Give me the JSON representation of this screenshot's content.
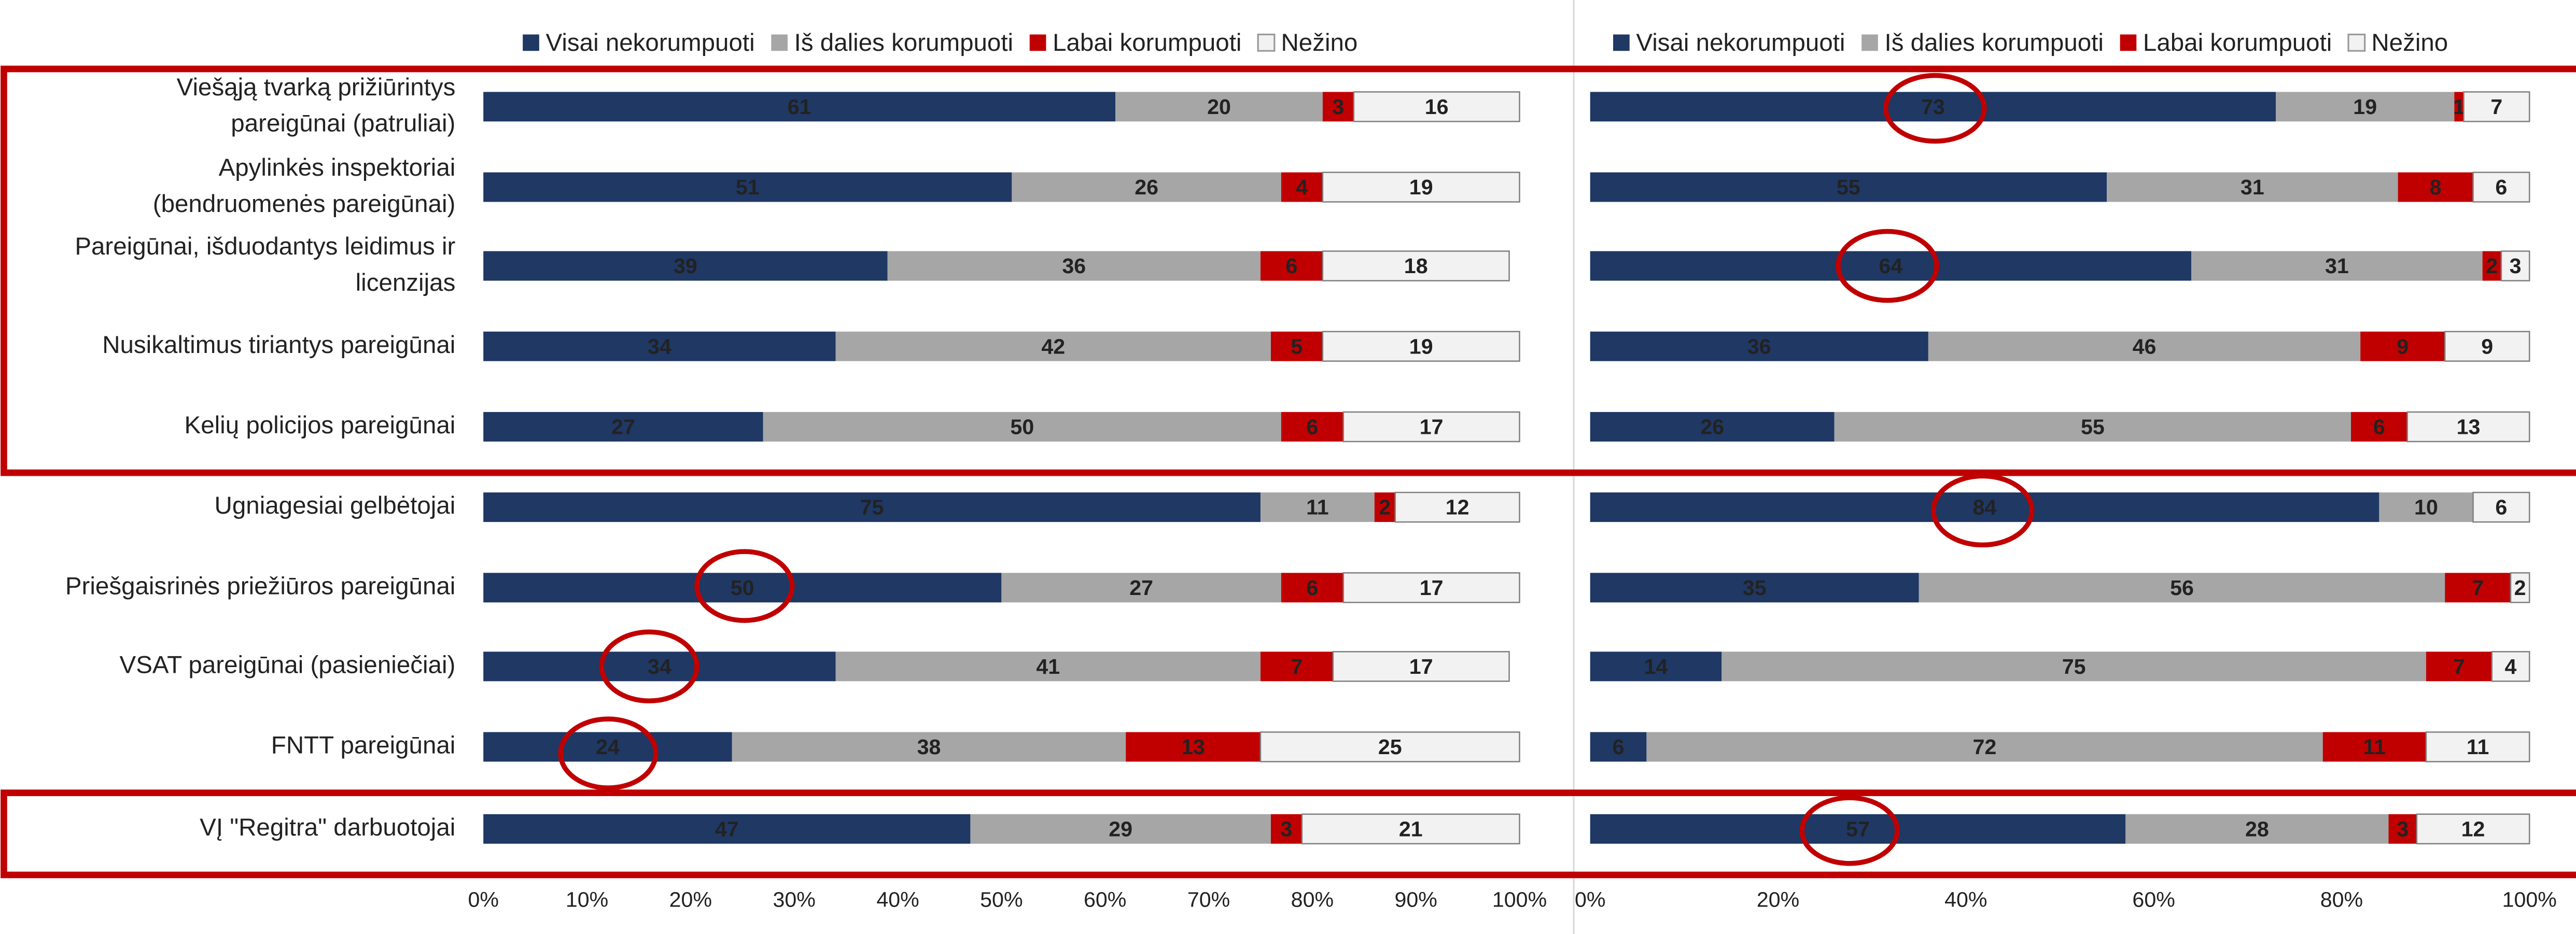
{
  "chart_data": [
    {
      "type": "bar",
      "orientation": "horizontal",
      "stacked": true,
      "categories": [
        "Viešąją tvarką prižiūrintys\npareigūnai (patruliai)",
        "Apylinkės inspektoriai\n(bendruomenės pareigūnai)",
        "Pareigūnai, išduodantys leidimus ir\nlicenzijas",
        "Nusikaltimus tiriantys pareigūnai",
        "Kelių policijos pareigūnai",
        "Ugniagesiai gelbėtojai",
        "Priešgaisrinės priežiūros pareigūnai",
        "VSAT pareigūnai (pasieniečiai)",
        "FNTT pareigūnai",
        "VĮ \"Regitra\" darbuotojai"
      ],
      "series": [
        {
          "name": "Visai nekorumpuoti",
          "color": "#1f3864",
          "values": [
            61,
            51,
            39,
            34,
            27,
            75,
            50,
            34,
            24,
            47
          ]
        },
        {
          "name": "Iš dalies korumpuoti",
          "color": "#a6a6a6",
          "values": [
            20,
            26,
            36,
            42,
            50,
            11,
            27,
            41,
            38,
            29
          ]
        },
        {
          "name": "Labai korumpuoti",
          "color": "#c00000",
          "values": [
            3,
            4,
            6,
            5,
            6,
            2,
            6,
            7,
            13,
            3
          ]
        },
        {
          "name": "Nežino",
          "color": "#f2f2f2",
          "values": [
            16,
            19,
            18,
            19,
            17,
            12,
            17,
            17,
            25,
            21
          ]
        }
      ],
      "xlim": [
        0,
        100
      ],
      "xticks": [
        {
          "value": 0,
          "label": "0%"
        },
        {
          "value": 10,
          "label": "10%"
        },
        {
          "value": 20,
          "label": "20%"
        },
        {
          "value": 30,
          "label": "30%"
        },
        {
          "value": 40,
          "label": "40%"
        },
        {
          "value": 50,
          "label": "50%"
        },
        {
          "value": 60,
          "label": "60%"
        },
        {
          "value": 70,
          "label": "70%"
        },
        {
          "value": 80,
          "label": "80%"
        },
        {
          "value": 90,
          "label": "90%"
        },
        {
          "value": 100,
          "label": "100%"
        }
      ],
      "legend": "top"
    },
    {
      "type": "bar",
      "orientation": "horizontal",
      "stacked": true,
      "series": [
        {
          "name": "Visai nekorumpuoti",
          "color": "#1f3864",
          "values": [
            73,
            55,
            64,
            36,
            26,
            84,
            35,
            14,
            6,
            57
          ]
        },
        {
          "name": "Iš dalies korumpuoti",
          "color": "#a6a6a6",
          "values": [
            19,
            31,
            31,
            46,
            55,
            10,
            56,
            75,
            72,
            28
          ]
        },
        {
          "name": "Labai korumpuoti",
          "color": "#c00000",
          "values": [
            1,
            8,
            2,
            9,
            6,
            null,
            7,
            7,
            11,
            3
          ]
        },
        {
          "name": "Nežino",
          "color": "#f2f2f2",
          "values": [
            7,
            6,
            3,
            9,
            13,
            6,
            2,
            4,
            11,
            12
          ]
        }
      ],
      "xlim": [
        0,
        100
      ],
      "xticks": [
        {
          "value": 0,
          "label": "0%"
        },
        {
          "value": 20,
          "label": "20%"
        },
        {
          "value": 40,
          "label": "40%"
        },
        {
          "value": 60,
          "label": "60%"
        },
        {
          "value": 80,
          "label": "80%"
        },
        {
          "value": 100,
          "label": "100%"
        }
      ],
      "legend": "top"
    }
  ]
}
